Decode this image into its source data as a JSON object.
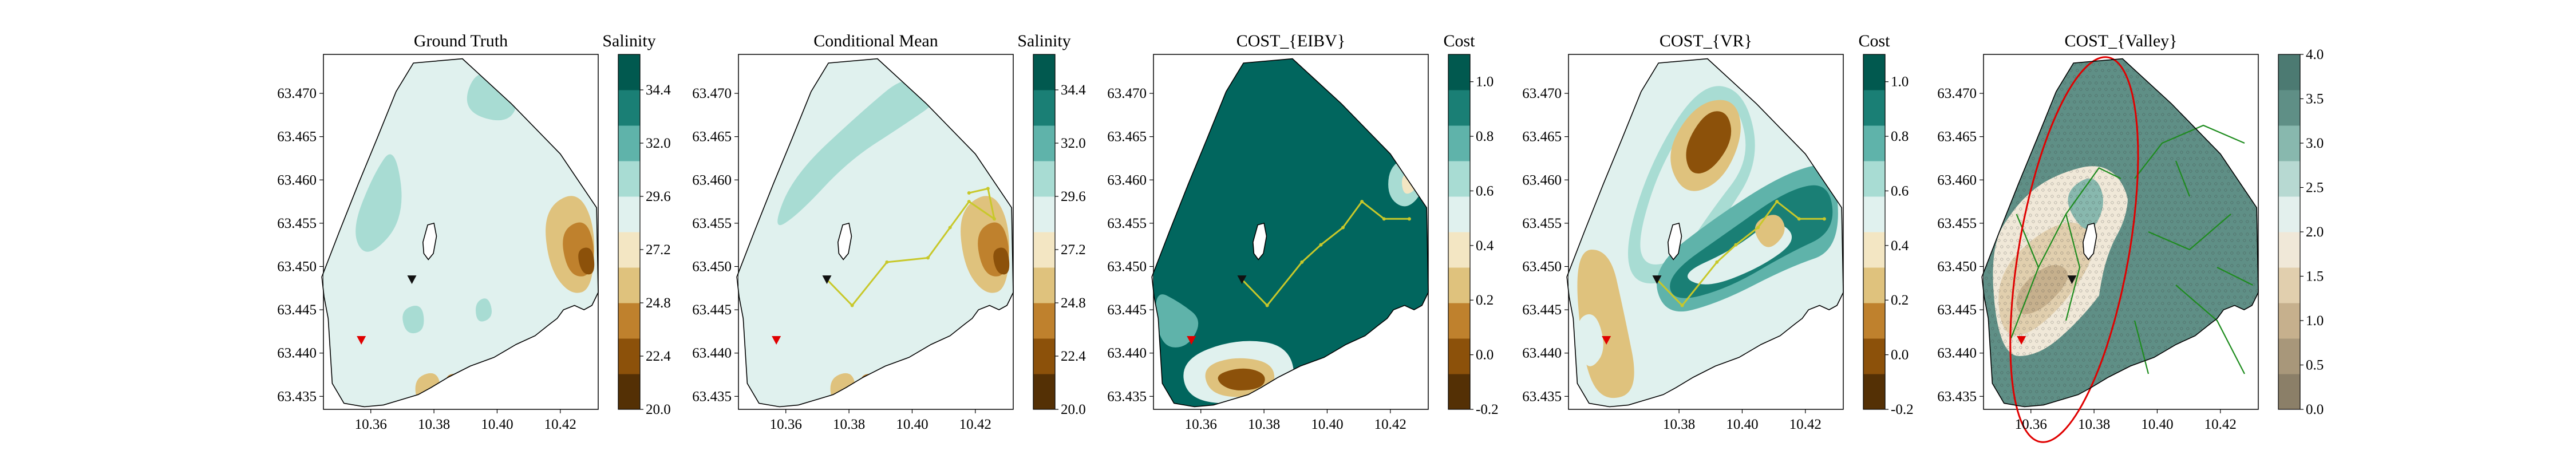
{
  "chart_data": [
    {
      "type": "heatmap",
      "title": "Ground Truth",
      "colorbar_label": "Salinity",
      "colormap": "BrBG",
      "cbar_ticks": [
        "20.0",
        "22.4",
        "24.8",
        "27.2",
        "29.6",
        "32.0",
        "34.4"
      ],
      "cbar_range": [
        20.0,
        36.0
      ],
      "xticks": [
        "10.36",
        "10.38",
        "10.40",
        "10.42"
      ],
      "yticks": [
        "63.435",
        "63.440",
        "63.445",
        "63.450",
        "63.455",
        "63.460",
        "63.465",
        "63.470"
      ],
      "xlim": [
        10.345,
        10.432
      ],
      "ylim": [
        63.4335,
        63.4745
      ],
      "markers": [
        {
          "kind": "start",
          "color": "#e00000",
          "lon": 10.357,
          "lat": 63.4415
        },
        {
          "kind": "current",
          "color": "#111111",
          "lon": 10.373,
          "lat": 63.4485
        }
      ],
      "path": []
    },
    {
      "type": "heatmap",
      "title": "Conditional Mean",
      "colorbar_label": "Salinity",
      "colormap": "BrBG",
      "cbar_ticks": [
        "20.0",
        "22.4",
        "24.8",
        "27.2",
        "29.6",
        "32.0",
        "34.4"
      ],
      "cbar_range": [
        20.0,
        36.0
      ],
      "xticks": [
        "10.36",
        "10.38",
        "10.40",
        "10.42"
      ],
      "yticks": [
        "63.435",
        "63.440",
        "63.445",
        "63.450",
        "63.455",
        "63.460",
        "63.465",
        "63.470"
      ],
      "xlim": [
        10.345,
        10.432
      ],
      "ylim": [
        63.4335,
        63.4745
      ],
      "markers": [
        {
          "kind": "start",
          "color": "#e00000",
          "lon": 10.357,
          "lat": 63.4415
        },
        {
          "kind": "current",
          "color": "#111111",
          "lon": 10.373,
          "lat": 63.4485
        }
      ],
      "path": [
        [
          10.373,
          63.4485
        ],
        [
          10.381,
          63.4455
        ],
        [
          10.392,
          63.4505
        ],
        [
          10.405,
          63.451
        ],
        [
          10.412,
          63.4545
        ],
        [
          10.418,
          63.4575
        ],
        [
          10.426,
          63.4555
        ],
        [
          10.424,
          63.459
        ],
        [
          10.418,
          63.4585
        ]
      ]
    },
    {
      "type": "heatmap",
      "title": "COST_{EIBV}",
      "colorbar_label": "Cost",
      "colormap": "BrBG",
      "cbar_ticks": [
        "-0.2",
        "0.0",
        "0.2",
        "0.4",
        "0.6",
        "0.8",
        "1.0"
      ],
      "cbar_range": [
        -0.2,
        1.1
      ],
      "xticks": [
        "10.36",
        "10.38",
        "10.40",
        "10.42"
      ],
      "yticks": [
        "63.435",
        "63.440",
        "63.445",
        "63.450",
        "63.455",
        "63.460",
        "63.465",
        "63.470"
      ],
      "xlim": [
        10.345,
        10.432
      ],
      "ylim": [
        63.4335,
        63.4745
      ],
      "markers": [
        {
          "kind": "start",
          "color": "#e00000",
          "lon": 10.357,
          "lat": 63.4415
        },
        {
          "kind": "current",
          "color": "#111111",
          "lon": 10.373,
          "lat": 63.4485
        }
      ],
      "path": [
        [
          10.373,
          63.4485
        ],
        [
          10.381,
          63.4455
        ],
        [
          10.392,
          63.4505
        ],
        [
          10.398,
          63.4525
        ],
        [
          10.405,
          63.4545
        ],
        [
          10.411,
          63.4575
        ],
        [
          10.418,
          63.4555
        ],
        [
          10.426,
          63.4555
        ]
      ]
    },
    {
      "type": "heatmap",
      "title": "COST_{VR}",
      "colorbar_label": "Cost",
      "colormap": "BrBG",
      "cbar_ticks": [
        "-0.2",
        "0.0",
        "0.2",
        "0.4",
        "0.6",
        "0.8",
        "1.0"
      ],
      "cbar_range": [
        -0.2,
        1.1
      ],
      "xticks": [
        "10.38",
        "10.40",
        "10.42"
      ],
      "yticks": [
        "63.435",
        "63.440",
        "63.445",
        "63.450",
        "63.455",
        "63.460",
        "63.465",
        "63.470"
      ],
      "xlim": [
        10.345,
        10.432
      ],
      "ylim": [
        63.4335,
        63.4745
      ],
      "markers": [
        {
          "kind": "start",
          "color": "#e00000",
          "lon": 10.357,
          "lat": 63.4415
        },
        {
          "kind": "current",
          "color": "#111111",
          "lon": 10.373,
          "lat": 63.4485
        }
      ],
      "path": [
        [
          10.373,
          63.4485
        ],
        [
          10.381,
          63.4455
        ],
        [
          10.392,
          63.4505
        ],
        [
          10.398,
          63.4525
        ],
        [
          10.405,
          63.4545
        ],
        [
          10.411,
          63.4575
        ],
        [
          10.418,
          63.4555
        ],
        [
          10.426,
          63.4555
        ]
      ]
    },
    {
      "type": "heatmap",
      "title": "COST_{Valley}",
      "colorbar_label": "",
      "colormap": "BrBG-desaturated",
      "cbar_ticks": [
        "0.0",
        "0.5",
        "1.0",
        "1.5",
        "2.0",
        "2.5",
        "3.0",
        "3.5",
        "4.0"
      ],
      "cbar_range": [
        0.0,
        4.0
      ],
      "xticks": [
        "10.36",
        "10.38",
        "10.40",
        "10.42"
      ],
      "yticks": [
        "63.435",
        "63.440",
        "63.445",
        "63.450",
        "63.455",
        "63.460",
        "63.465",
        "63.470"
      ],
      "xlim": [
        10.345,
        10.432
      ],
      "ylim": [
        63.4335,
        63.4745
      ],
      "markers": [
        {
          "kind": "start",
          "color": "#e00000",
          "lon": 10.357,
          "lat": 63.4415
        },
        {
          "kind": "current",
          "color": "#111111",
          "lon": 10.373,
          "lat": 63.4485
        }
      ],
      "path": []
    }
  ]
}
